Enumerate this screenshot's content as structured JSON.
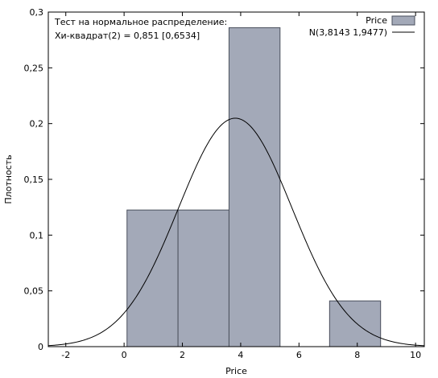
{
  "chart_data": {
    "type": "bar",
    "xlabel": "Price",
    "ylabel": "Плотность",
    "xlim": [
      -2.6,
      10.3
    ],
    "ylim": [
      0,
      0.3
    ],
    "x_ticks": [
      -2,
      0,
      2,
      4,
      6,
      8,
      10
    ],
    "y_ticks": [
      0,
      0.05,
      0.1,
      0.15,
      0.2,
      0.25,
      0.3
    ],
    "y_tick_labels": [
      "0",
      "0,05",
      "0,1",
      "0,15",
      "0,2",
      "0,25",
      "0,3"
    ],
    "grid": false,
    "legend_position": "top-right",
    "annotation_lines": [
      "Тест на нормальное распределение:",
      "Хи-квадрат(2) = 0,851 [0,6534]"
    ],
    "series": [
      {
        "name": "Price",
        "type": "histogram",
        "color": "#a3a9b8",
        "edge_color": "#4a4f5c",
        "bins": [
          {
            "x0": 0.1,
            "x1": 1.85,
            "density": 0.1225
          },
          {
            "x0": 1.85,
            "x1": 3.6,
            "density": 0.1225
          },
          {
            "x0": 3.6,
            "x1": 5.35,
            "density": 0.286
          },
          {
            "x0": 7.05,
            "x1": 8.8,
            "density": 0.041
          }
        ]
      },
      {
        "name": "N(3,8143 1,9477)",
        "type": "normal-curve",
        "color": "#000000",
        "mean": 3.8143,
        "sd": 1.9477
      }
    ]
  }
}
